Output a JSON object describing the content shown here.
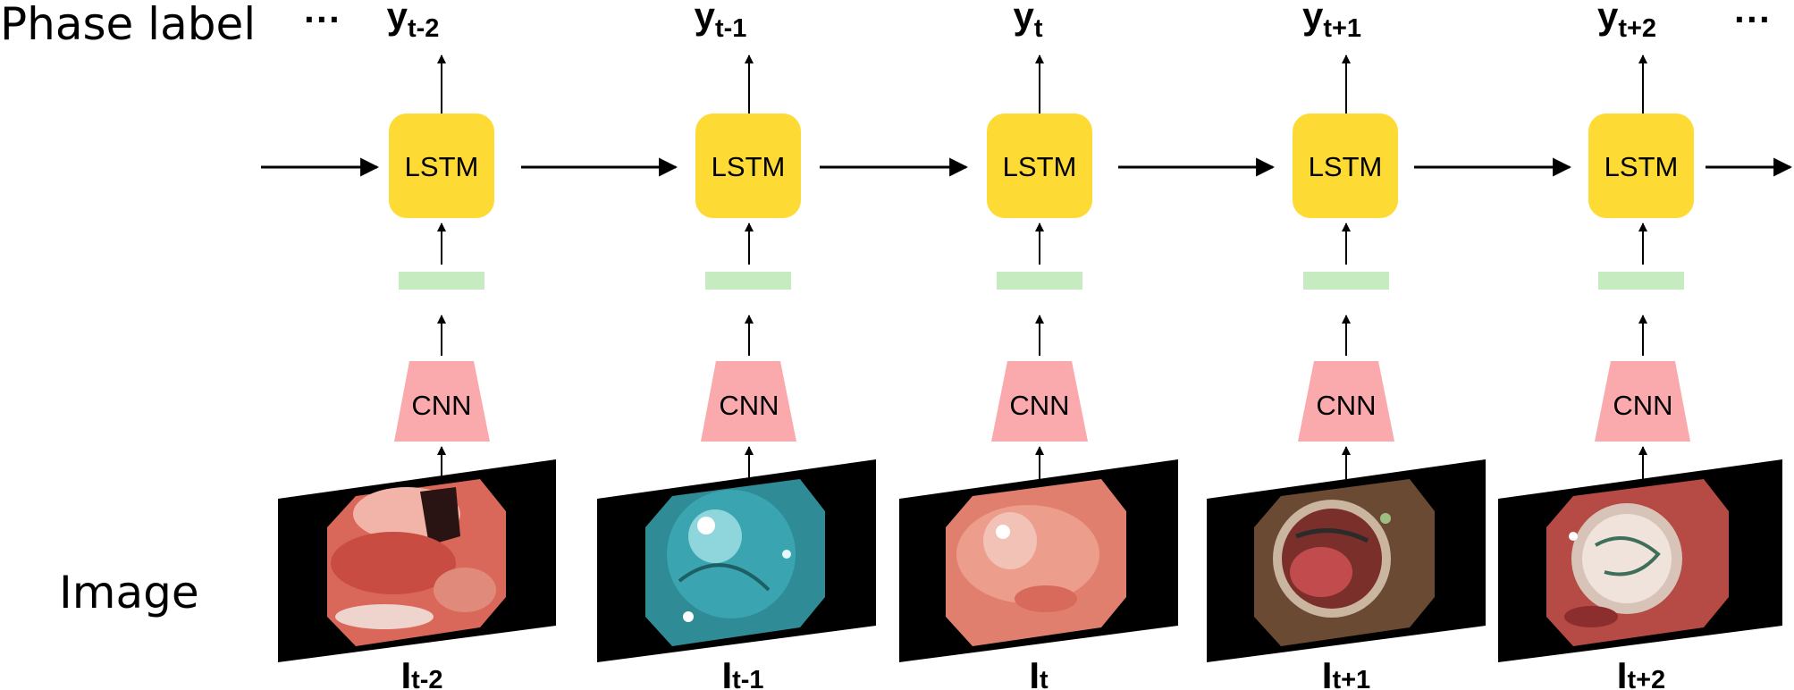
{
  "row_labels": {
    "phase": "Phase label",
    "image": "Image"
  },
  "ellipsis": "···",
  "box_labels": {
    "lstm": "LSTM",
    "cnn": "CNN"
  },
  "colors": {
    "lstm": "#FDDA34",
    "feature": "#C6EBC0",
    "cnn": "#FAAAAD",
    "arrow": "#000000",
    "frame": "#000000"
  },
  "timesteps": [
    {
      "output": {
        "base": "y",
        "sub": "t-2"
      },
      "input": {
        "base": "I",
        "sub": "t-2"
      },
      "image": "endoscopic-frame-pink-tissue"
    },
    {
      "output": {
        "base": "y",
        "sub": "t-1"
      },
      "input": {
        "base": "I",
        "sub": "t-1"
      },
      "image": "endoscopic-frame-blue-dye"
    },
    {
      "output": {
        "base": "y",
        "sub": "t"
      },
      "input": {
        "base": "I",
        "sub": "t"
      },
      "image": "endoscopic-frame-raised-lesion"
    },
    {
      "output": {
        "base": "y",
        "sub": "t+1"
      },
      "input": {
        "base": "I",
        "sub": "t+1"
      },
      "image": "endoscopic-frame-resection-cap"
    },
    {
      "output": {
        "base": "y",
        "sub": "t+2"
      },
      "input": {
        "base": "I",
        "sub": "t+2"
      },
      "image": "endoscopic-frame-clipped-wound"
    }
  ]
}
